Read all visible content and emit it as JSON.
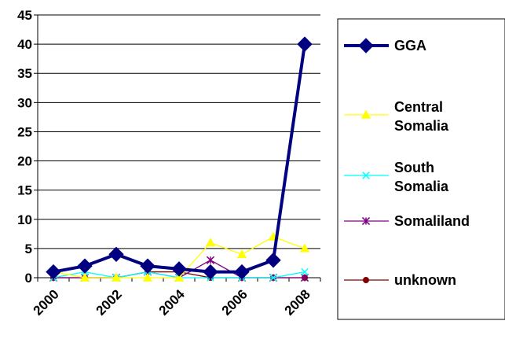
{
  "chart_data": {
    "type": "line",
    "title": "",
    "xlabel": "",
    "ylabel": "",
    "x_tick_labels": [
      "2000",
      "2002",
      "2004",
      "2006",
      "2008"
    ],
    "y_ticks": [
      0,
      5,
      10,
      15,
      20,
      25,
      30,
      35,
      40,
      45
    ],
    "ylim": [
      0,
      45
    ],
    "x": [
      2000,
      2001,
      2002,
      2003,
      2004,
      2005,
      2006,
      2007,
      2008
    ],
    "grid": "horizontal",
    "legend_position": "right",
    "series": [
      {
        "name": "GGA",
        "name_lines": [
          "GGA"
        ],
        "color": "#000080",
        "marker": "diamond",
        "values": [
          1,
          2,
          4,
          2,
          1.5,
          1,
          1,
          3,
          40
        ]
      },
      {
        "name": "Central Somalia",
        "name_lines": [
          "Central",
          "Somalia"
        ],
        "color": "#FFFF00",
        "marker": "triangle",
        "values": [
          1,
          0,
          0,
          0,
          0,
          6,
          4,
          7,
          5
        ]
      },
      {
        "name": "South Somalia",
        "name_lines": [
          "South",
          "Somalia"
        ],
        "color": "#00FFFF",
        "marker": "x",
        "values": [
          0,
          1,
          0,
          1,
          0,
          0,
          0,
          0,
          1
        ]
      },
      {
        "name": "Somaliland",
        "name_lines": [
          "Somaliland"
        ],
        "color": "#800080",
        "marker": "asterisk",
        "values": [
          0,
          0,
          0,
          1,
          0,
          3,
          0,
          0,
          0
        ]
      },
      {
        "name": "unknown",
        "name_lines": [
          "unknown"
        ],
        "color": "#800000",
        "marker": "circle",
        "values": [
          0,
          0,
          0,
          1,
          1,
          0,
          0,
          0,
          0
        ]
      }
    ]
  }
}
